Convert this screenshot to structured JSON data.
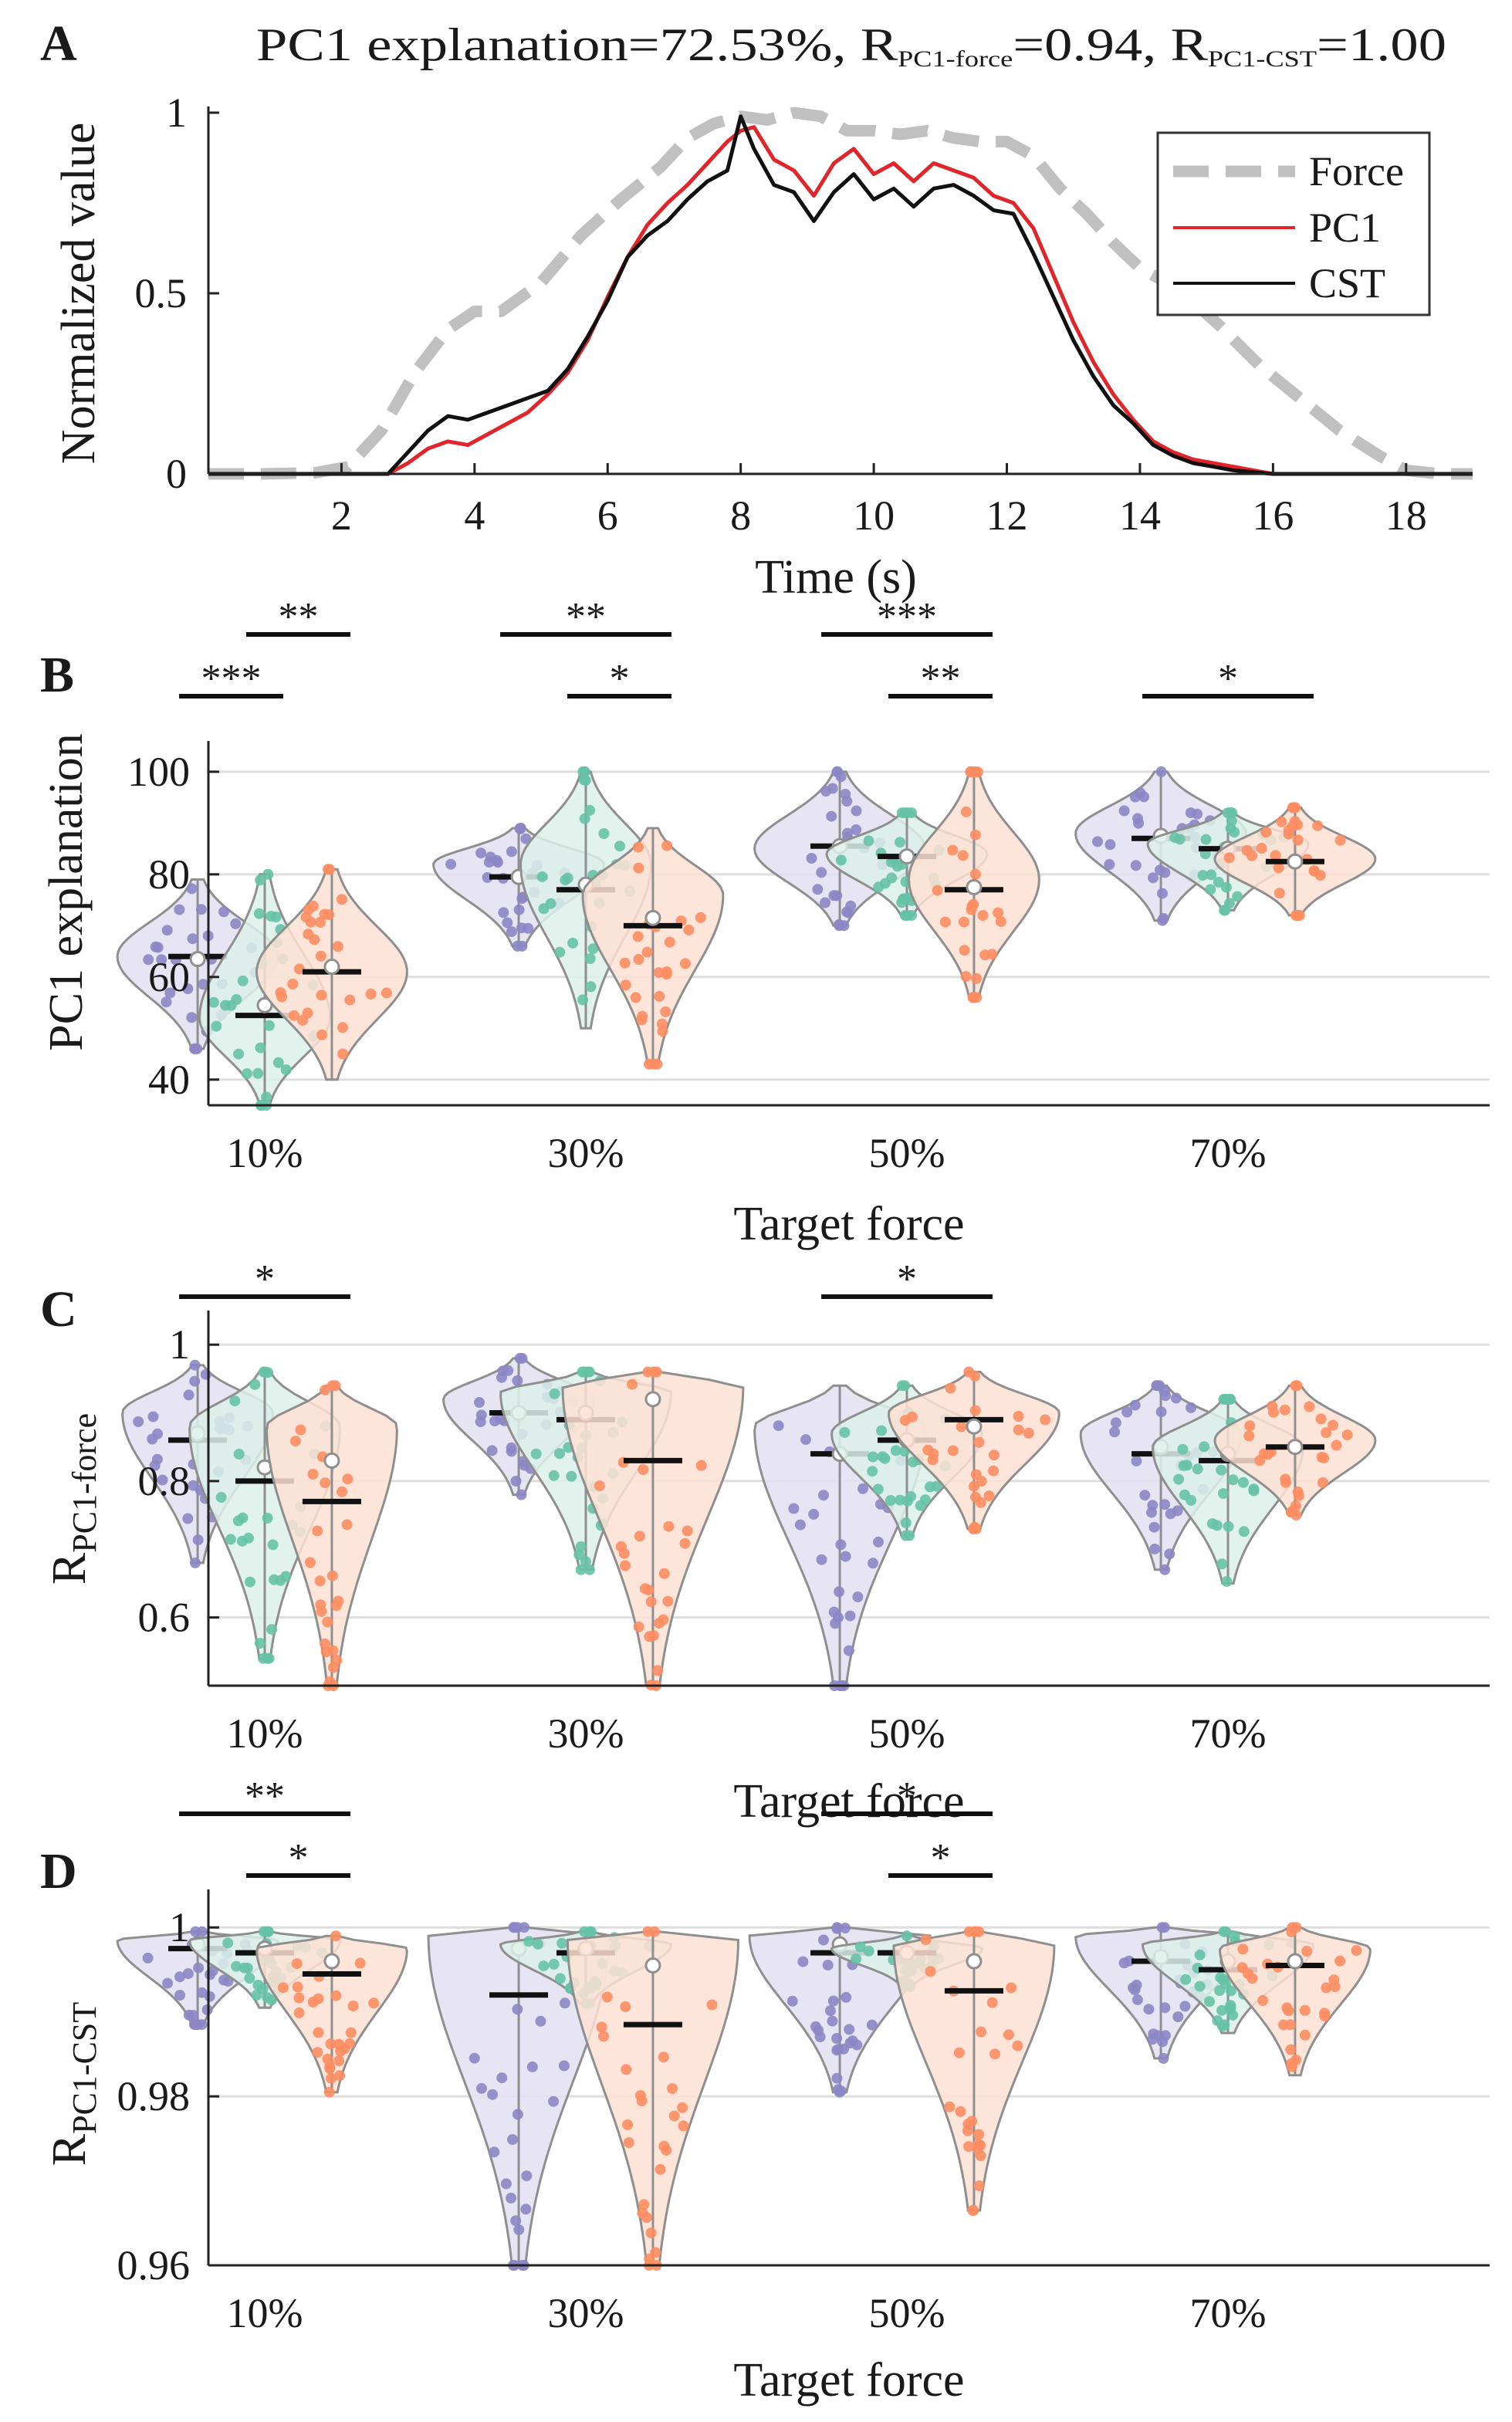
{
  "colors": {
    "group1": "#8c86c4",
    "group1_fill": "#e3e0f1",
    "group2": "#66c2a5",
    "group2_fill": "#dcf1e9",
    "group3": "#fc8d62",
    "group3_fill": "#fde0d3",
    "violin_edge": "#8f8f8f",
    "force": "#c0c0c0",
    "pc1": "#e0262b",
    "cst": "#111111",
    "grid": "#dedede"
  },
  "chart_data": [
    {
      "panel": "A",
      "type": "line",
      "title": "PC1 explanation=72.53%, R",
      "title_mid": "=0.94, R",
      "title_end": "=1.00",
      "title_sub1": "PC1-force",
      "title_sub2": "PC1-CST",
      "xlabel": "Time (s)",
      "ylabel": "Normalized value",
      "xlim": [
        0,
        19
      ],
      "ylim": [
        0,
        1
      ],
      "xticks": [
        2,
        4,
        6,
        8,
        10,
        12,
        14,
        16,
        18
      ],
      "yticks": [
        0,
        0.5,
        1
      ],
      "ytick_labels": [
        "0",
        "0.5",
        "1"
      ],
      "legend": {
        "position": "top-right",
        "entries": [
          "Force",
          "PC1",
          "CST"
        ]
      },
      "series": [
        {
          "name": "Force",
          "style": "dashed",
          "x": [
            0,
            0.8,
            1.6,
            2.1,
            2.6,
            3.1,
            3.6,
            4.0,
            4.4,
            5.0,
            5.6,
            6.2,
            6.8,
            7.2,
            7.6,
            8.0,
            8.4,
            8.8,
            9.2,
            9.6,
            10.0,
            10.4,
            10.8,
            11.2,
            11.6,
            12.0,
            12.4,
            12.8,
            13.2,
            13.6,
            14.0,
            14.6,
            15.2,
            15.8,
            16.4,
            17.0,
            17.6,
            18.0,
            18.5,
            19
          ],
          "y": [
            0,
            0,
            0.003,
            0.02,
            0.12,
            0.28,
            0.4,
            0.45,
            0.45,
            0.53,
            0.66,
            0.76,
            0.85,
            0.93,
            0.97,
            0.99,
            0.98,
            1.0,
            0.99,
            0.95,
            0.95,
            0.94,
            0.95,
            0.93,
            0.92,
            0.92,
            0.88,
            0.79,
            0.72,
            0.64,
            0.57,
            0.51,
            0.41,
            0.3,
            0.21,
            0.12,
            0.05,
            0.01,
            0,
            0
          ]
        },
        {
          "name": "PC1",
          "style": "solid",
          "x": [
            0,
            2.7,
            3.0,
            3.3,
            3.6,
            3.9,
            4.2,
            4.5,
            4.8,
            5.1,
            5.4,
            5.7,
            6.0,
            6.3,
            6.6,
            6.9,
            7.2,
            7.5,
            7.8,
            8.0,
            8.2,
            8.5,
            8.8,
            9.1,
            9.4,
            9.7,
            10.0,
            10.3,
            10.6,
            10.9,
            11.2,
            11.5,
            11.8,
            12.1,
            12.4,
            12.7,
            13.0,
            13.3,
            13.6,
            13.9,
            14.2,
            14.5,
            14.8,
            15.1,
            15.4,
            15.7,
            16.0,
            19
          ],
          "y": [
            0,
            0,
            0.03,
            0.07,
            0.09,
            0.08,
            0.11,
            0.14,
            0.17,
            0.22,
            0.28,
            0.37,
            0.49,
            0.6,
            0.69,
            0.75,
            0.8,
            0.86,
            0.92,
            0.95,
            0.96,
            0.87,
            0.84,
            0.77,
            0.86,
            0.9,
            0.83,
            0.86,
            0.81,
            0.86,
            0.84,
            0.82,
            0.77,
            0.75,
            0.68,
            0.55,
            0.42,
            0.31,
            0.22,
            0.15,
            0.09,
            0.06,
            0.04,
            0.03,
            0.02,
            0.01,
            0,
            0
          ]
        },
        {
          "name": "CST",
          "style": "solid",
          "x": [
            0,
            2.7,
            3.0,
            3.3,
            3.6,
            3.9,
            4.2,
            4.5,
            4.8,
            5.1,
            5.4,
            5.7,
            6.0,
            6.3,
            6.6,
            6.9,
            7.2,
            7.5,
            7.8,
            8.0,
            8.2,
            8.5,
            8.8,
            9.1,
            9.4,
            9.7,
            10.0,
            10.3,
            10.6,
            10.9,
            11.2,
            11.5,
            11.8,
            12.1,
            12.4,
            12.7,
            13.0,
            13.3,
            13.6,
            13.9,
            14.2,
            14.5,
            14.8,
            15.1,
            15.4,
            15.7,
            16.0,
            19
          ],
          "y": [
            0,
            0,
            0.06,
            0.12,
            0.16,
            0.15,
            0.17,
            0.19,
            0.21,
            0.23,
            0.29,
            0.38,
            0.48,
            0.6,
            0.66,
            0.7,
            0.76,
            0.81,
            0.84,
            0.99,
            0.9,
            0.8,
            0.78,
            0.7,
            0.78,
            0.83,
            0.76,
            0.79,
            0.74,
            0.79,
            0.8,
            0.77,
            0.73,
            0.72,
            0.61,
            0.49,
            0.37,
            0.27,
            0.19,
            0.14,
            0.08,
            0.05,
            0.03,
            0.02,
            0.01,
            0.005,
            0,
            0
          ]
        }
      ]
    },
    {
      "panel": "B",
      "type": "violin",
      "ylabel": "PC1 explanation",
      "xlabel": "Target force",
      "categories": [
        "10%",
        "30%",
        "50%",
        "70%"
      ],
      "ylim": [
        35,
        106
      ],
      "yticks": [
        40,
        60,
        80,
        100
      ],
      "ytick_labels": [
        "40",
        "60",
        "80",
        "100"
      ],
      "groups": [
        {
          "category": "10%",
          "violins": [
            {
              "series": 1,
              "min": 46,
              "max": 79,
              "median": 64,
              "mean": 63.5,
              "mode": 64,
              "spread": 0.8
            },
            {
              "series": 2,
              "min": 35,
              "max": 80,
              "median": 52.5,
              "mean": 54.5,
              "mode": 52,
              "spread": 0.65
            },
            {
              "series": 3,
              "min": 40,
              "max": 81,
              "median": 61,
              "mean": 62,
              "mode": 61,
              "spread": 0.75
            }
          ]
        },
        {
          "category": "30%",
          "violins": [
            {
              "series": 1,
              "min": 66,
              "max": 89,
              "median": 79.5,
              "mean": 79.5,
              "mode": 82,
              "spread": 0.85
            },
            {
              "series": 2,
              "min": 50,
              "max": 100,
              "median": 77,
              "mean": 78,
              "mode": 82,
              "spread": 0.65
            },
            {
              "series": 3,
              "min": 43,
              "max": 89,
              "median": 70,
              "mean": 71.5,
              "mode": 76,
              "spread": 0.7
            }
          ]
        },
        {
          "category": "50%",
          "violins": [
            {
              "series": 1,
              "min": 70,
              "max": 100,
              "median": 85.5,
              "mean": 85.5,
              "mode": 85,
              "spread": 0.85
            },
            {
              "series": 2,
              "min": 72,
              "max": 92,
              "median": 83.5,
              "mean": 83.5,
              "mode": 84,
              "spread": 0.8
            },
            {
              "series": 3,
              "min": 56,
              "max": 100,
              "median": 77,
              "mean": 77.5,
              "mode": 79,
              "spread": 0.65
            }
          ]
        },
        {
          "category": "70%",
          "violins": [
            {
              "series": 1,
              "min": 71,
              "max": 100,
              "median": 87,
              "mean": 87.5,
              "mode": 88,
              "spread": 0.85
            },
            {
              "series": 2,
              "min": 73,
              "max": 92,
              "median": 85,
              "mean": 85,
              "mode": 86,
              "spread": 0.8
            },
            {
              "series": 3,
              "min": 72,
              "max": 93,
              "median": 82.5,
              "mean": 82.5,
              "mode": 83,
              "spread": 0.8
            }
          ]
        }
      ],
      "significance": [
        {
          "category": "10%",
          "from": 1,
          "to": 2,
          "stars": "***",
          "level": 0
        },
        {
          "category": "10%",
          "from": 2,
          "to": 3,
          "stars": "**",
          "level": 1
        },
        {
          "category": "30%",
          "from": 1,
          "to": 3,
          "stars": "**",
          "level": 1
        },
        {
          "category": "30%",
          "from": 2,
          "to": 3,
          "stars": "*",
          "level": 0
        },
        {
          "category": "50%",
          "from": 1,
          "to": 3,
          "stars": "***",
          "level": 1
        },
        {
          "category": "50%",
          "from": 2,
          "to": 3,
          "stars": "**",
          "level": 0
        },
        {
          "category": "70%",
          "from": 1,
          "to": 3,
          "stars": "*",
          "level": 0
        }
      ]
    },
    {
      "panel": "C",
      "type": "violin",
      "ylabel": "R",
      "ylabel_sub": "PC1-force",
      "xlabel": "Target force",
      "categories": [
        "10%",
        "30%",
        "50%",
        "70%"
      ],
      "ylim": [
        0.5,
        1.05
      ],
      "yticks": [
        0.6,
        0.8,
        1.0
      ],
      "ytick_labels": [
        "0.6",
        "0.8",
        "1"
      ],
      "groups": [
        {
          "category": "10%",
          "violins": [
            {
              "series": 1,
              "min": 0.68,
              "max": 0.97,
              "median": 0.86,
              "mean": 0.87,
              "mode": 0.9,
              "spread": 0.75
            },
            {
              "series": 2,
              "min": 0.54,
              "max": 0.96,
              "median": 0.8,
              "mean": 0.82,
              "mode": 0.88,
              "spread": 0.75
            },
            {
              "series": 3,
              "min": 0.5,
              "max": 0.94,
              "median": 0.77,
              "mean": 0.83,
              "mode": 0.88,
              "spread": 0.65
            }
          ]
        },
        {
          "category": "30%",
          "violins": [
            {
              "series": 1,
              "min": 0.78,
              "max": 0.98,
              "median": 0.9,
              "mean": 0.9,
              "mode": 0.92,
              "spread": 0.75
            },
            {
              "series": 2,
              "min": 0.67,
              "max": 0.96,
              "median": 0.89,
              "mean": 0.9,
              "mode": 0.93,
              "spread": 0.85
            },
            {
              "series": 3,
              "min": 0.5,
              "max": 0.96,
              "median": 0.83,
              "mean": 0.92,
              "mode": 0.94,
              "spread": 0.9
            }
          ]
        },
        {
          "category": "50%",
          "violins": [
            {
              "series": 1,
              "min": 0.5,
              "max": 0.94,
              "median": 0.84,
              "mean": 0.84,
              "mode": 0.88,
              "spread": 0.85
            },
            {
              "series": 2,
              "min": 0.72,
              "max": 0.94,
              "median": 0.86,
              "mean": 0.86,
              "mode": 0.87,
              "spread": 0.75
            },
            {
              "series": 3,
              "min": 0.73,
              "max": 0.96,
              "median": 0.89,
              "mean": 0.88,
              "mode": 0.9,
              "spread": 0.85
            }
          ]
        },
        {
          "category": "70%",
          "violins": [
            {
              "series": 1,
              "min": 0.67,
              "max": 0.94,
              "median": 0.84,
              "mean": 0.85,
              "mode": 0.87,
              "spread": 0.8
            },
            {
              "series": 2,
              "min": 0.65,
              "max": 0.92,
              "median": 0.83,
              "mean": 0.84,
              "mode": 0.85,
              "spread": 0.75
            },
            {
              "series": 3,
              "min": 0.75,
              "max": 0.94,
              "median": 0.85,
              "mean": 0.85,
              "mode": 0.86,
              "spread": 0.8
            }
          ]
        }
      ],
      "significance": [
        {
          "category": "10%",
          "from": 1,
          "to": 3,
          "stars": "*",
          "level": 0
        },
        {
          "category": "50%",
          "from": 1,
          "to": 3,
          "stars": "*",
          "level": 0
        }
      ]
    },
    {
      "panel": "D",
      "type": "violin",
      "ylabel": "R",
      "ylabel_sub": "PC1-CST",
      "xlabel": "Target force",
      "categories": [
        "10%",
        "30%",
        "50%",
        "70%"
      ],
      "ylim": [
        0.96,
        1.0045
      ],
      "yticks": [
        0.96,
        0.98,
        1.0
      ],
      "ytick_labels": [
        "0.96",
        "0.98",
        "1"
      ],
      "groups": [
        {
          "category": "10%",
          "violins": [
            {
              "series": 1,
              "min": 0.9885,
              "max": 0.9995,
              "median": 0.9975,
              "mean": 0.998,
              "mode": 0.9985,
              "spread": 0.8
            },
            {
              "series": 2,
              "min": 0.9905,
              "max": 0.9995,
              "median": 0.997,
              "mean": 0.9975,
              "mode": 0.9985,
              "spread": 0.75
            },
            {
              "series": 3,
              "min": 0.9805,
              "max": 0.999,
              "median": 0.9945,
              "mean": 0.996,
              "mode": 0.9975,
              "spread": 0.75
            }
          ]
        },
        {
          "category": "30%",
          "violins": [
            {
              "series": 1,
              "min": 0.96,
              "max": 1.0,
              "median": 0.992,
              "mean": 0.9975,
              "mode": 0.999,
              "spread": 0.9
            },
            {
              "series": 2,
              "min": 0.991,
              "max": 0.9995,
              "median": 0.997,
              "mean": 0.9975,
              "mode": 0.998,
              "spread": 0.85
            },
            {
              "series": 3,
              "min": 0.96,
              "max": 0.9995,
              "median": 0.9885,
              "mean": 0.9955,
              "mode": 0.9985,
              "spread": 0.85
            }
          ]
        },
        {
          "category": "50%",
          "violins": [
            {
              "series": 1,
              "min": 0.9805,
              "max": 1.0,
              "median": 0.997,
              "mean": 0.998,
              "mode": 0.999,
              "spread": 0.9
            },
            {
              "series": 2,
              "min": 0.993,
              "max": 0.999,
              "median": 0.997,
              "mean": 0.997,
              "mode": 0.9975,
              "spread": 0.75
            },
            {
              "series": 3,
              "min": 0.9665,
              "max": 0.9995,
              "median": 0.9925,
              "mean": 0.996,
              "mode": 0.998,
              "spread": 0.8
            }
          ]
        },
        {
          "category": "70%",
          "violins": [
            {
              "series": 1,
              "min": 0.9845,
              "max": 1.0,
              "median": 0.996,
              "mean": 0.9965,
              "mode": 0.999,
              "spread": 0.85
            },
            {
              "series": 2,
              "min": 0.9875,
              "max": 0.9995,
              "median": 0.995,
              "mean": 0.996,
              "mode": 0.998,
              "spread": 0.85
            },
            {
              "series": 3,
              "min": 0.9825,
              "max": 1.0,
              "median": 0.9955,
              "mean": 0.996,
              "mode": 0.9975,
              "spread": 0.75
            }
          ]
        }
      ],
      "significance": [
        {
          "category": "10%",
          "from": 1,
          "to": 3,
          "stars": "**",
          "level": 1
        },
        {
          "category": "10%",
          "from": 2,
          "to": 3,
          "stars": "*",
          "level": 0
        },
        {
          "category": "50%",
          "from": 1,
          "to": 3,
          "stars": "*",
          "level": 1
        },
        {
          "category": "50%",
          "from": 2,
          "to": 3,
          "stars": "*",
          "level": 0
        }
      ]
    }
  ]
}
